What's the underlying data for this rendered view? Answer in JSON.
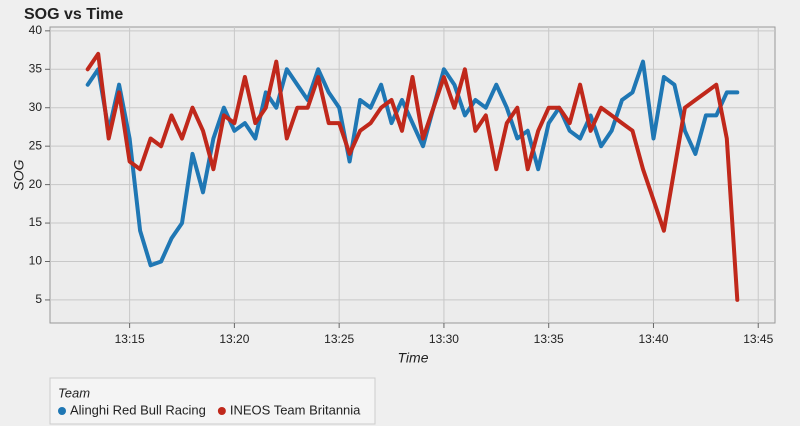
{
  "chart_data": {
    "type": "line",
    "title": "SOG vs Time",
    "x_label": "Time",
    "y_label": "SOG",
    "x": [
      13.0,
      13.5,
      14.0,
      14.5,
      15.0,
      15.5,
      16.0,
      16.5,
      17.0,
      17.5,
      18.0,
      18.5,
      19.0,
      19.5,
      20.0,
      20.5,
      21.0,
      21.5,
      22.0,
      22.5,
      23.0,
      23.5,
      24.0,
      24.5,
      25.0,
      25.5,
      26.0,
      26.5,
      27.0,
      27.5,
      28.0,
      28.5,
      29.0,
      29.5,
      30.0,
      30.5,
      31.0,
      31.5,
      32.0,
      32.5,
      33.0,
      33.5,
      34.0,
      34.5,
      35.0,
      35.5,
      36.0,
      36.5,
      37.0,
      37.5,
      38.0,
      38.5,
      39.0,
      39.5,
      40.0,
      40.5,
      41.0,
      41.5,
      42.0,
      42.5,
      43.0,
      43.5,
      44.0
    ],
    "series": [
      {
        "name": "Alinghi Red Bull Racing",
        "color": "#1f77b4",
        "values": [
          33,
          35,
          27,
          33,
          26,
          14,
          9.5,
          10,
          13,
          15,
          24,
          19,
          26,
          30,
          27,
          28,
          26,
          32,
          30,
          35,
          33,
          31,
          35,
          32,
          30,
          23,
          31,
          30,
          33,
          28,
          31,
          28,
          25,
          30,
          35,
          33,
          29,
          31,
          30,
          33,
          30,
          26,
          27,
          22,
          28,
          30,
          27,
          26,
          29,
          25,
          27,
          31,
          32,
          36,
          26,
          34,
          33,
          27,
          24,
          29,
          29,
          32,
          32
        ]
      },
      {
        "name": "INEOS Team Britannia",
        "color": "#c0281b",
        "values": [
          35,
          37,
          26,
          32,
          23,
          22,
          26,
          25,
          29,
          26,
          30,
          27,
          22,
          29,
          28,
          34,
          28,
          30,
          36,
          26,
          30,
          30,
          34,
          28,
          28,
          24,
          27,
          28,
          30,
          31,
          27,
          34,
          26,
          30,
          34,
          30,
          35,
          27,
          29,
          22,
          28,
          30,
          22,
          27,
          30,
          30,
          28,
          33,
          27,
          30,
          29,
          28,
          27,
          22,
          18,
          14,
          22,
          30,
          31,
          32,
          33,
          26,
          5
        ]
      }
    ],
    "xlim": [
      11.2,
      45.8
    ],
    "xticks": [
      {
        "value": 15,
        "label": "13:15"
      },
      {
        "value": 20,
        "label": "13:20"
      },
      {
        "value": 25,
        "label": "13:25"
      },
      {
        "value": 30,
        "label": "13:30"
      },
      {
        "value": 35,
        "label": "13:35"
      },
      {
        "value": 40,
        "label": "13:40"
      },
      {
        "value": 45,
        "label": "13:45"
      }
    ],
    "ylim": [
      2,
      40.5
    ],
    "yticks": [
      5,
      10,
      15,
      20,
      25,
      30,
      35,
      40
    ],
    "grid": true,
    "legend_title": "Team"
  }
}
